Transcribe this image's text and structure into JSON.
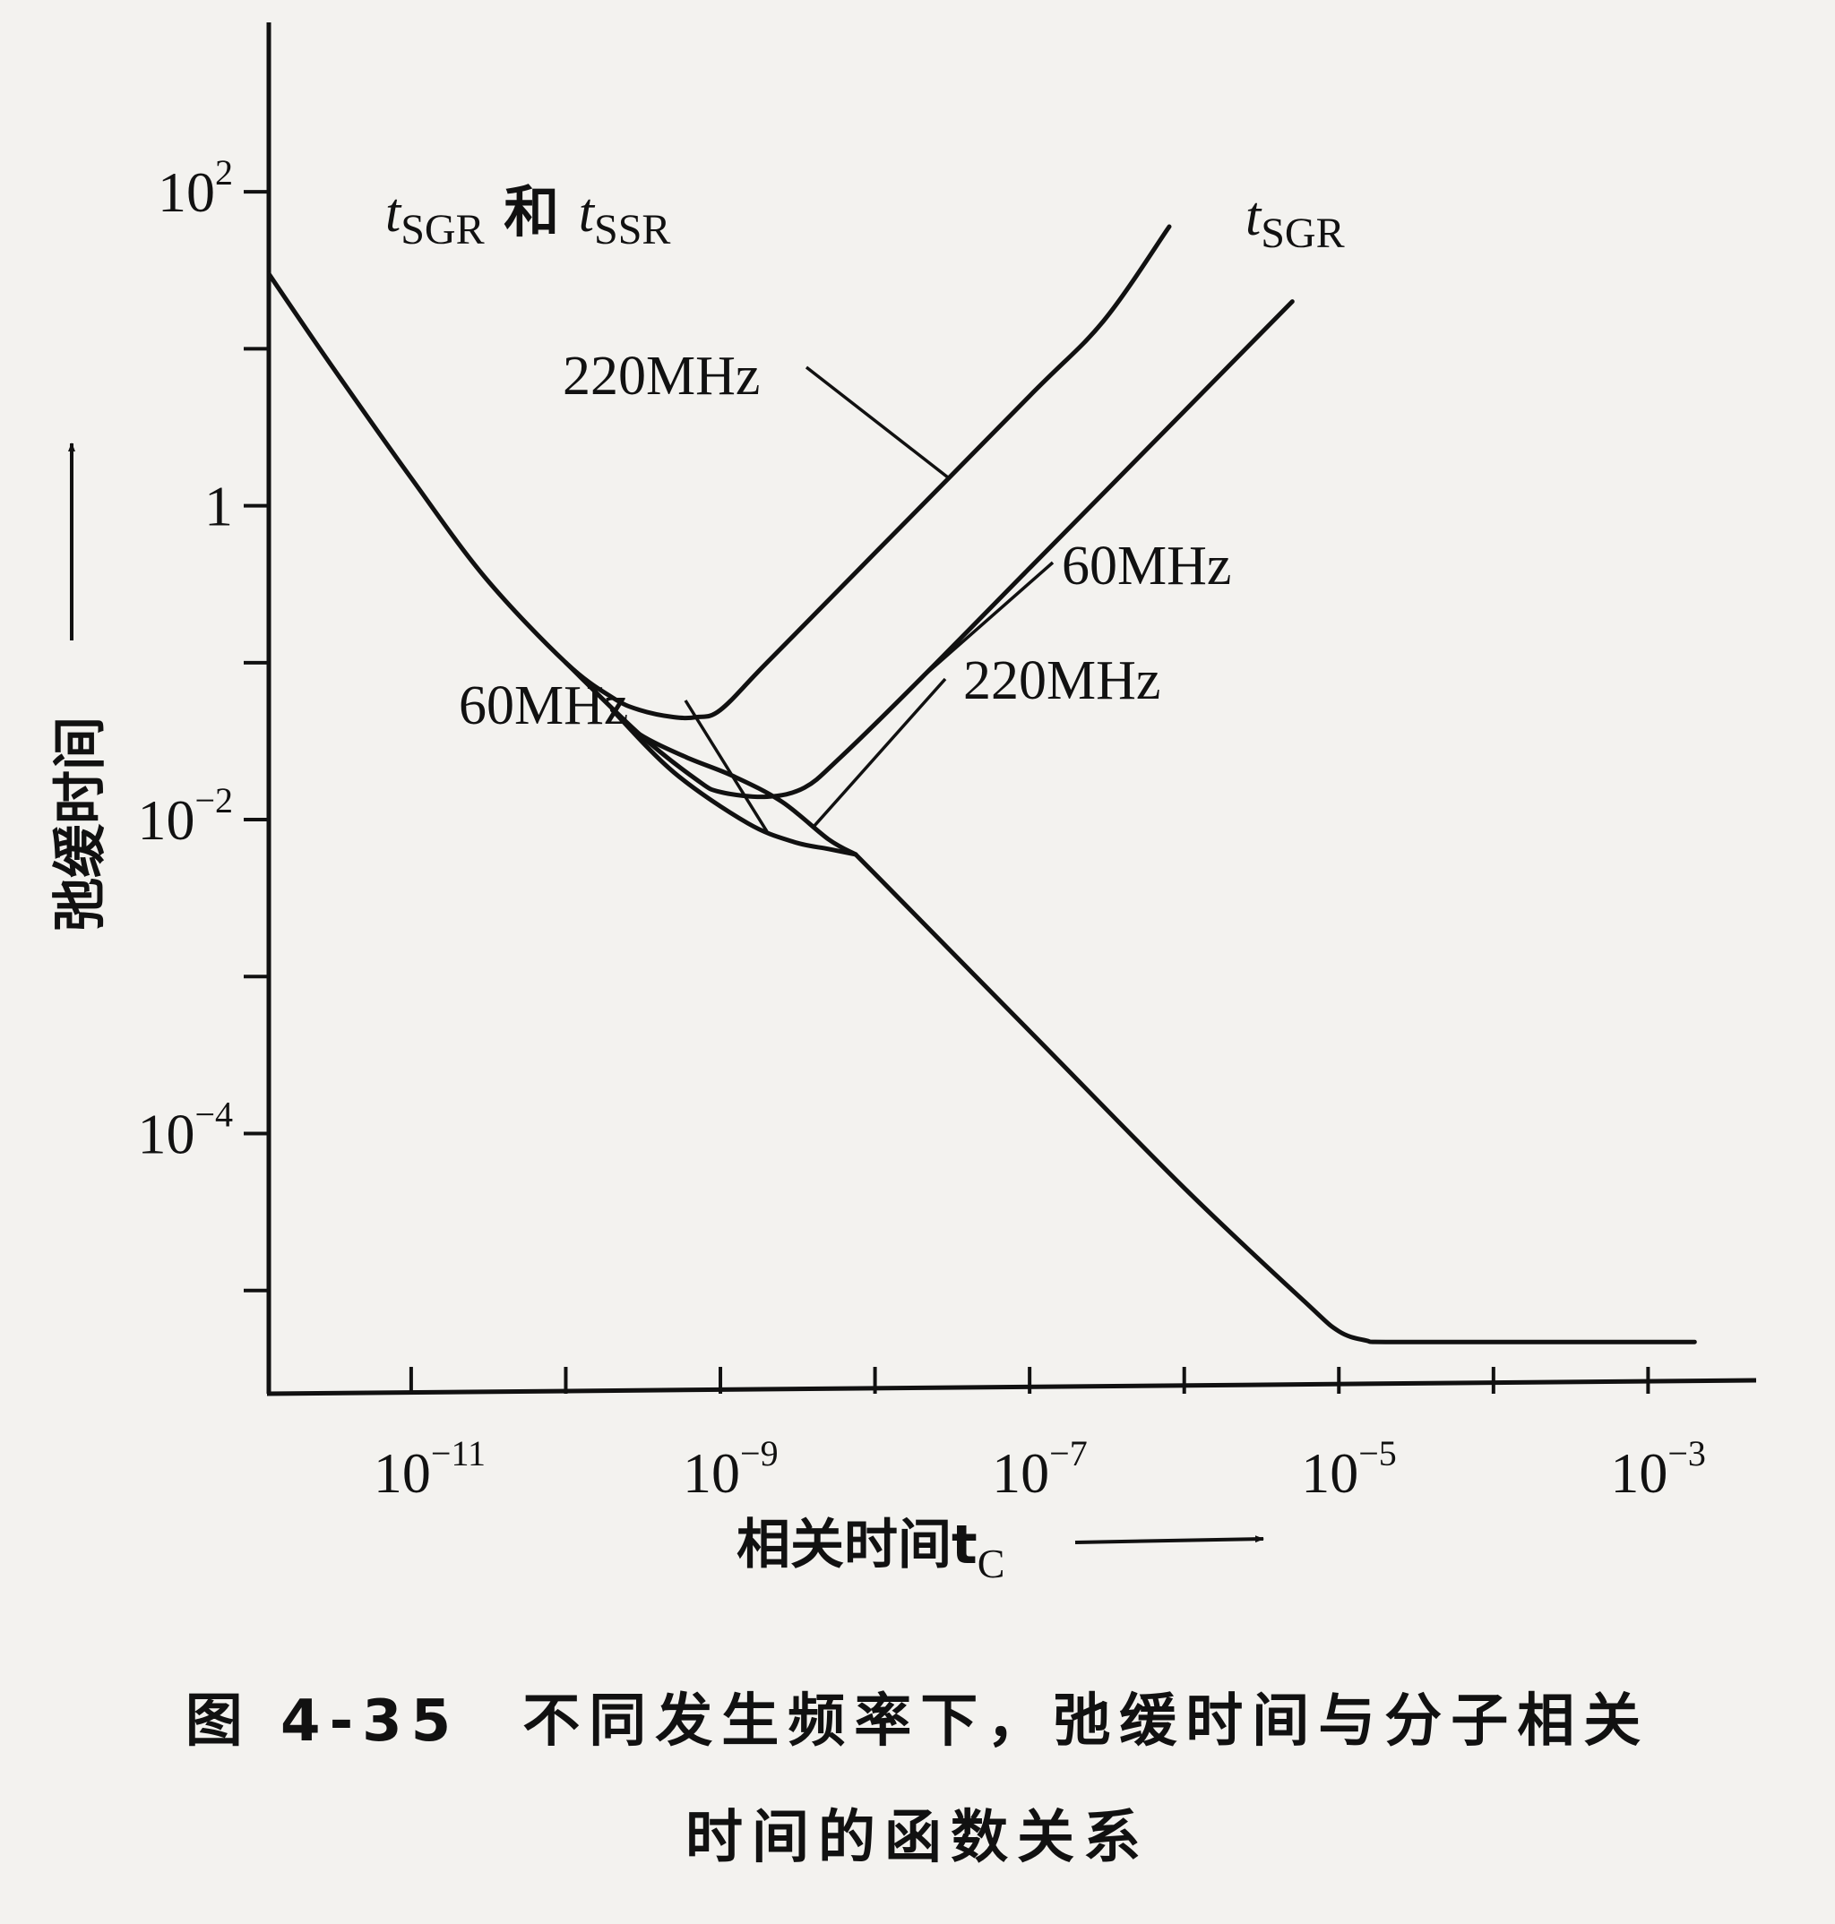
{
  "chart_data": {
    "type": "line",
    "x_scale": "log",
    "y_scale": "log",
    "xlabel": "相关时间t",
    "xlabel_sub": "C",
    "ylabel": "弛缓时间",
    "x_ticks": [
      {
        "base": "10",
        "exp": "−11",
        "value": 1e-11
      },
      {
        "base": "10",
        "exp": "−9",
        "value": 1e-09
      },
      {
        "base": "10",
        "exp": "−7",
        "value": 1e-07
      },
      {
        "base": "10",
        "exp": "−5",
        "value": 1e-05
      },
      {
        "base": "10",
        "exp": "−3",
        "value": 0.001
      }
    ],
    "y_ticks": [
      {
        "base": "10",
        "exp": "2",
        "value": 100
      },
      {
        "base": "1",
        "exp": "",
        "value": 1
      },
      {
        "base": "10",
        "exp": "−2",
        "value": 0.01
      },
      {
        "base": "10",
        "exp": "−4",
        "value": 0.0001
      }
    ],
    "xlim": [
      1.2e-12,
      0.005
    ],
    "ylim": [
      2.2e-06,
      1200
    ],
    "annotations": {
      "tsgr_tssr": {
        "t1": "t",
        "s1": "SGR",
        "mid": " 和 ",
        "t2": "t",
        "s2": "SSR"
      },
      "tsgr": {
        "t": "t",
        "s": "SGR"
      },
      "upper_220": "220MHz",
      "upper_60": "60MHz",
      "lower_220": "220MHz",
      "lower_60": "60MHz"
    },
    "series": [
      {
        "id": "tSGR-220MHz",
        "points": [
          [
            1.2e-12,
            30
          ],
          [
            3e-12,
            8
          ],
          [
            1e-11,
            1.5
          ],
          [
            3e-11,
            0.35
          ],
          [
            1e-10,
            0.1
          ],
          [
            2e-10,
            0.06
          ],
          [
            3e-10,
            0.05
          ],
          [
            5e-10,
            0.045
          ],
          [
            7e-10,
            0.045
          ],
          [
            1e-09,
            0.05
          ],
          [
            2e-09,
            0.1
          ],
          [
            1e-08,
            0.5
          ],
          [
            1e-07,
            5
          ],
          [
            3e-07,
            15
          ],
          [
            8e-07,
            60
          ]
        ]
      },
      {
        "id": "tSGR-60MHz",
        "points": [
          [
            1e-10,
            0.1
          ],
          [
            3e-10,
            0.035
          ],
          [
            7e-10,
            0.018
          ],
          [
            1e-09,
            0.015
          ],
          [
            2e-09,
            0.014
          ],
          [
            3.5e-09,
            0.016
          ],
          [
            6e-09,
            0.025
          ],
          [
            2e-08,
            0.08
          ],
          [
            1e-07,
            0.4
          ],
          [
            1e-06,
            4
          ],
          [
            5e-06,
            20
          ]
        ]
      },
      {
        "id": "tSSR-220MHz",
        "points": [
          [
            2e-10,
            0.05
          ],
          [
            3e-10,
            0.035
          ],
          [
            6e-10,
            0.025
          ],
          [
            1.2e-09,
            0.019
          ],
          [
            2.5e-09,
            0.013
          ],
          [
            5e-09,
            0.0075
          ],
          [
            7.5e-09,
            0.006
          ]
        ]
      },
      {
        "id": "tSSR-60MHz",
        "points": [
          [
            2e-10,
            0.05
          ],
          [
            5e-10,
            0.02
          ],
          [
            1.5e-09,
            0.0095
          ],
          [
            3e-09,
            0.0072
          ],
          [
            5e-09,
            0.0065
          ],
          [
            7.5e-09,
            0.006
          ]
        ]
      },
      {
        "id": "tSSR-tail",
        "points": [
          [
            7.5e-09,
            0.006
          ],
          [
            1e-08,
            0.0045
          ],
          [
            1e-07,
            0.00045
          ],
          [
            1e-06,
            4.5e-05
          ],
          [
            6e-06,
            8.5e-06
          ],
          [
            1e-05,
            5.5e-06
          ],
          [
            1.5e-05,
            4.8e-06
          ],
          [
            2e-05,
            4.7e-06
          ],
          [
            0.0001,
            4.7e-06
          ],
          [
            0.002,
            4.7e-06
          ]
        ]
      }
    ]
  },
  "caption": {
    "fig_num": "图 4-35",
    "line1": "不同发生频率下，弛缓时间与分子相关",
    "line2": "时间的函数关系"
  }
}
